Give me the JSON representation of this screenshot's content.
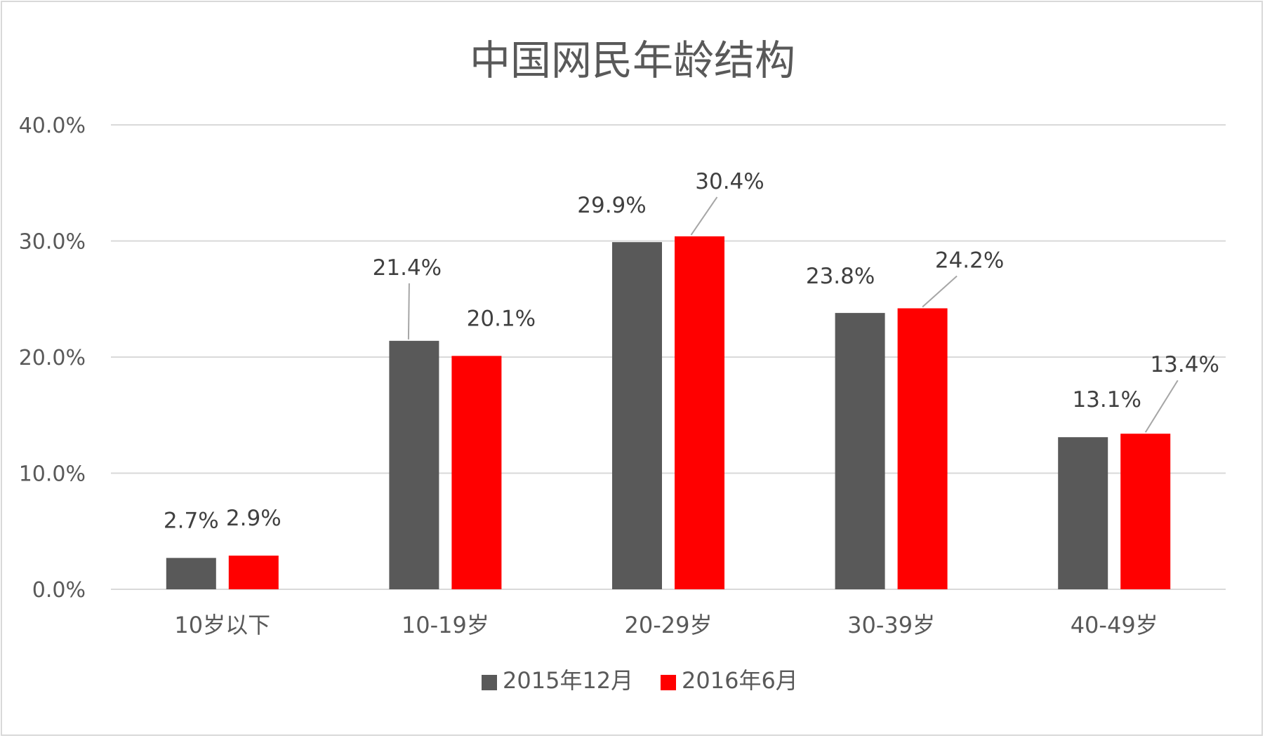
{
  "chart_data": {
    "type": "bar",
    "title": "中国网民年龄结构",
    "categories": [
      "10岁以下",
      "10-19岁",
      "20-29岁",
      "30-39岁",
      "40-49岁"
    ],
    "series": [
      {
        "name": "2015年12月",
        "color": "#595959",
        "values": [
          2.7,
          21.4,
          29.9,
          23.8,
          13.1
        ],
        "labels": [
          "2.7%",
          "21.4%",
          "29.9%",
          "23.8%",
          "13.1%"
        ]
      },
      {
        "name": "2016年6月",
        "color": "#ff0000",
        "values": [
          2.9,
          20.1,
          30.4,
          24.2,
          13.4
        ],
        "labels": [
          "2.9%",
          "20.1%",
          "30.4%",
          "24.2%",
          "13.4%"
        ]
      }
    ],
    "ylim": [
      0,
      40
    ],
    "yticks": [
      0,
      10,
      20,
      30,
      40
    ],
    "ytick_labels": [
      "0.0%",
      "10.0%",
      "20.0%",
      "30.0%",
      "40.0%"
    ],
    "xlabel": "",
    "ylabel": "",
    "grid": true,
    "legend_position": "bottom",
    "gridline_color": "#d9d9d9",
    "axis_color": "#d9d9d9"
  }
}
